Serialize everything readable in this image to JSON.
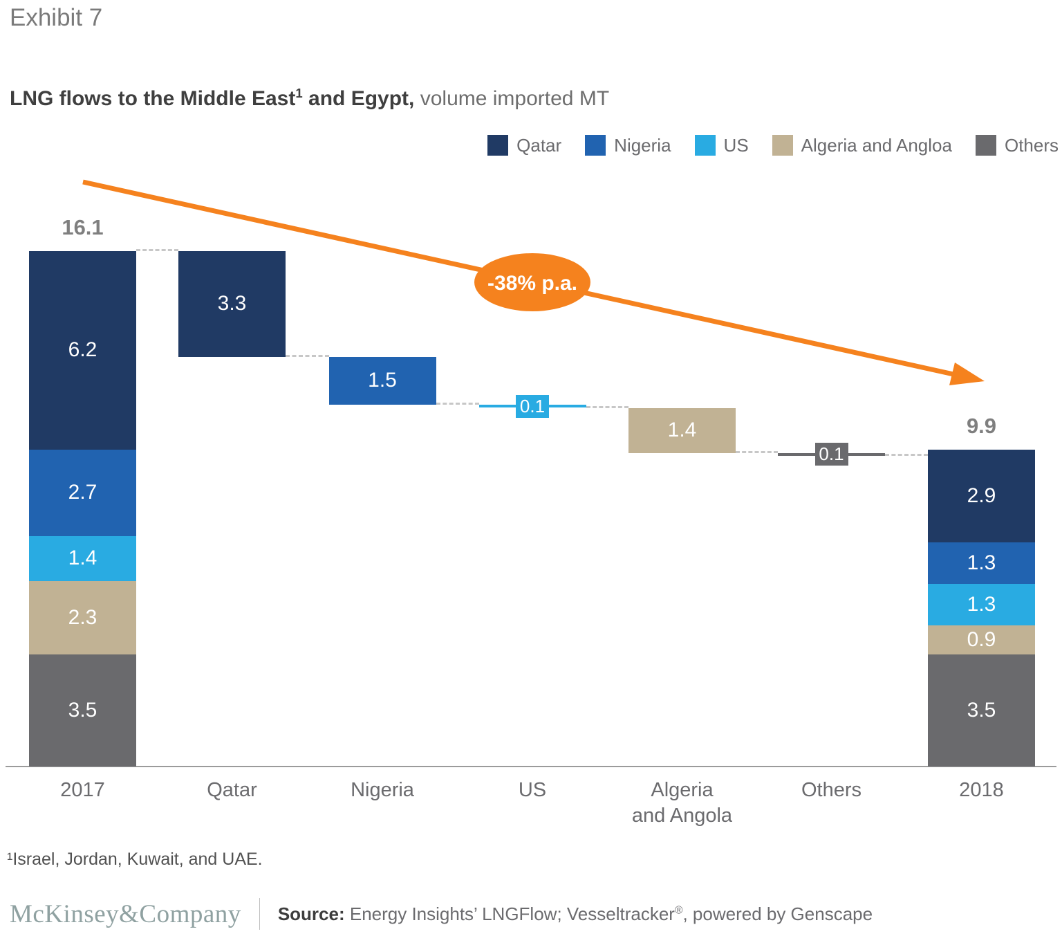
{
  "exhibit_label": "Exhibit 7",
  "title": {
    "lead": "LNG flows to the Middle East",
    "sup": "1",
    "tail": " and Egypt,",
    "subtitle": " volume imported MT"
  },
  "legend": [
    {
      "label": "Qatar",
      "color": "#203a64"
    },
    {
      "label": "Nigeria",
      "color": "#2163b0"
    },
    {
      "label": "US",
      "color": "#29abe2"
    },
    {
      "label": "Algeria and Angloa",
      "color": "#c1b294"
    },
    {
      "label": "Others",
      "color": "#6a6a6d"
    }
  ],
  "annotation": {
    "text": "-38% p.a.",
    "color": "#f5821e"
  },
  "chart_data": {
    "type": "waterfall",
    "unit": "MT",
    "title": "LNG flows to the Middle East and Egypt, volume imported MT",
    "ylim": [
      0,
      16.1
    ],
    "grid": false,
    "legend_position": "top-right",
    "series_colors": {
      "Qatar": "#203a64",
      "Nigeria": "#2163b0",
      "US": "#29abe2",
      "Algeria and Angola": "#c1b294",
      "Others": "#6a6a6d"
    },
    "columns": [
      {
        "label": "2017",
        "axis_label": "2017",
        "type": "total",
        "total": 16.1,
        "segments": [
          {
            "name": "Qatar",
            "value": 6.2
          },
          {
            "name": "Nigeria",
            "value": 2.7
          },
          {
            "name": "US",
            "value": 1.4
          },
          {
            "name": "Algeria and Angola",
            "value": 2.3
          },
          {
            "name": "Others",
            "value": 3.5
          }
        ]
      },
      {
        "label": "Qatar",
        "axis_label": "Qatar",
        "type": "decrease",
        "series": "Qatar",
        "value": 3.3
      },
      {
        "label": "Nigeria",
        "axis_label": "Nigeria",
        "type": "decrease",
        "series": "Nigeria",
        "value": 1.5
      },
      {
        "label": "US",
        "axis_label": "US",
        "type": "decrease",
        "series": "US",
        "value": 0.1
      },
      {
        "label": "Algeria and Angola",
        "axis_label": "Algeria\nand Angola",
        "type": "decrease",
        "series": "Algeria and Angola",
        "value": 1.4
      },
      {
        "label": "Others",
        "axis_label": "Others",
        "type": "decrease",
        "series": "Others",
        "value": 0.1
      },
      {
        "label": "2018",
        "axis_label": "2018",
        "type": "total",
        "total": 9.9,
        "segments": [
          {
            "name": "Qatar",
            "value": 2.9
          },
          {
            "name": "Nigeria",
            "value": 1.3
          },
          {
            "name": "US",
            "value": 1.3
          },
          {
            "name": "Algeria and Angola",
            "value": 0.9
          },
          {
            "name": "Others",
            "value": 3.5
          }
        ]
      }
    ],
    "trend_annotation": "-38% p.a."
  },
  "footnote": "¹Israel, Jordan, Kuwait, and UAE.",
  "footer": {
    "logo": "McKinsey&Company",
    "source_label": "Source:",
    "source_pre": " Energy Insights’ LNGFlow; Vesseltracker",
    "source_reg": "®",
    "source_post": ", powered by Genscape"
  }
}
